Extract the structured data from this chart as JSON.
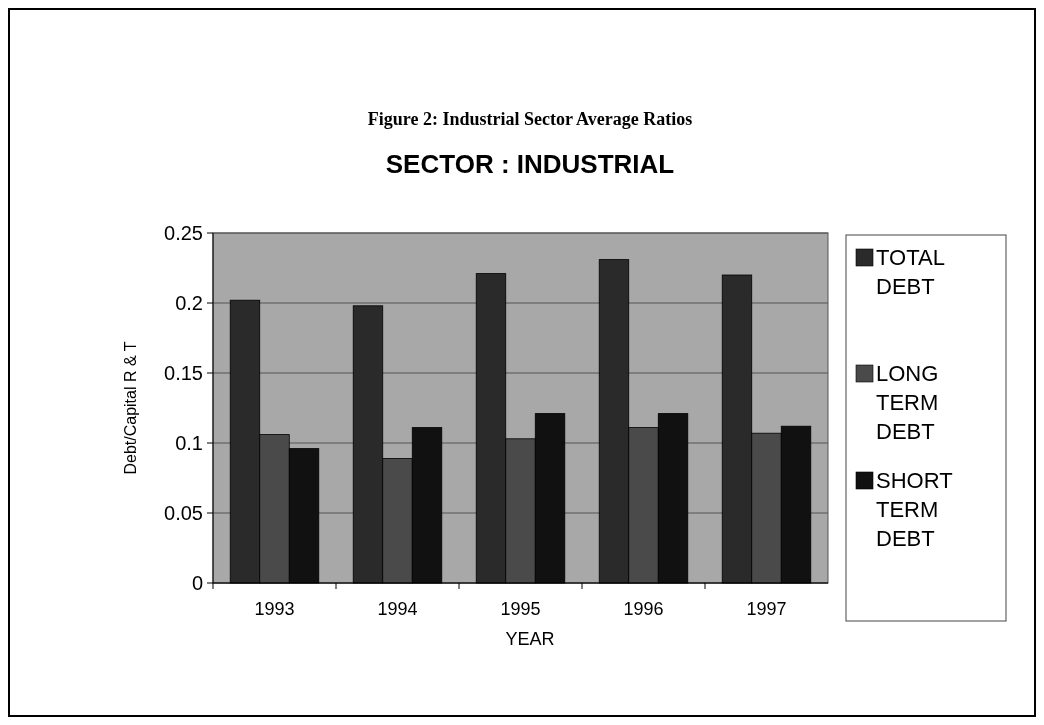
{
  "chart_data": {
    "type": "bar",
    "title": "Figure 2: Industrial Sector Average Ratios",
    "subtitle": "SECTOR : INDUSTRIAL",
    "xlabel": "YEAR",
    "ylabel": "Debt/Capital R & T",
    "categories": [
      "1993",
      "1994",
      "1995",
      "1996",
      "1997"
    ],
    "series": [
      {
        "name": "TOTAL DEBT",
        "color": "#2a2a2a",
        "values": [
          0.202,
          0.198,
          0.221,
          0.231,
          0.22
        ]
      },
      {
        "name": "LONG TERM DEBT",
        "color": "#4a4a4a",
        "values": [
          0.106,
          0.089,
          0.103,
          0.111,
          0.107
        ]
      },
      {
        "name": "SHORT TERM DEBT",
        "color": "#111111",
        "values": [
          0.096,
          0.111,
          0.121,
          0.121,
          0.112
        ]
      }
    ],
    "ylim": [
      0,
      0.25
    ],
    "yticks": [
      0,
      0.05,
      0.1,
      0.15,
      0.2,
      0.25
    ],
    "grid": "y",
    "legend": "right"
  }
}
